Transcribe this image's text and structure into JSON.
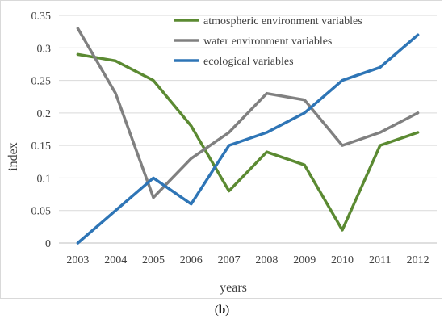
{
  "chart_data": {
    "type": "line",
    "categories": [
      "2003",
      "2004",
      "2005",
      "2006",
      "2007",
      "2008",
      "2009",
      "2010",
      "2011",
      "2012"
    ],
    "series": [
      {
        "name": "atmospheric environment variables",
        "color": "#5b8a32",
        "values": [
          0.29,
          0.28,
          0.25,
          0.18,
          0.08,
          0.14,
          0.12,
          0.02,
          0.15,
          0.17
        ]
      },
      {
        "name": "water environment variables",
        "color": "#808080",
        "values": [
          0.33,
          0.23,
          0.07,
          0.13,
          0.17,
          0.23,
          0.22,
          0.15,
          0.17,
          0.2
        ]
      },
      {
        "name": "ecological variables",
        "color": "#2e75b6",
        "values": [
          0.0,
          0.05,
          0.1,
          0.06,
          0.15,
          0.17,
          0.2,
          0.25,
          0.27,
          0.32
        ]
      }
    ],
    "yticks": [
      "0",
      "0.05",
      "0.1",
      "0.15",
      "0.2",
      "0.25",
      "0.3",
      "0.35"
    ],
    "ylim": [
      0,
      0.35
    ],
    "xlabel": "years",
    "ylabel": "index",
    "grid": true,
    "legend": "top-center"
  },
  "caption": {
    "open": "(",
    "letter": "b",
    "close": ")"
  }
}
